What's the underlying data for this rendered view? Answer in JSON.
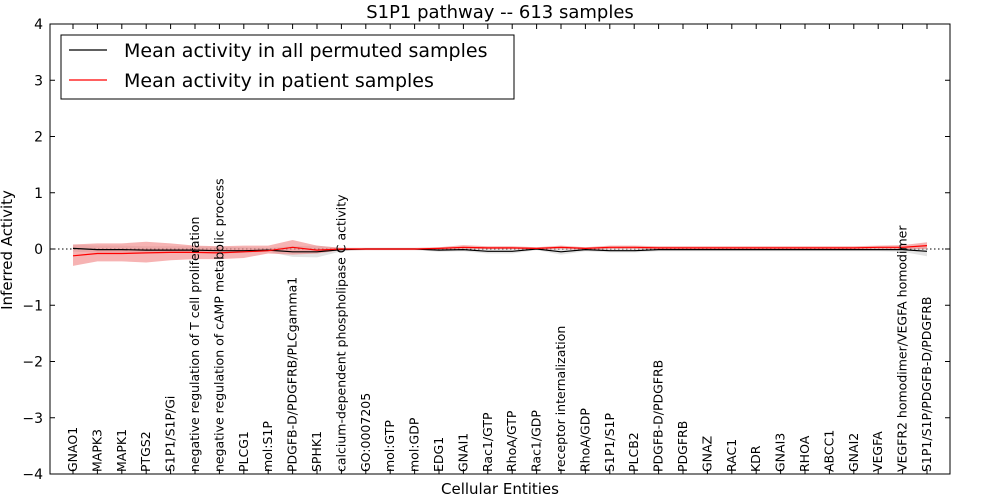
{
  "chart_data": {
    "type": "line",
    "title": "S1P1 pathway -- 613 samples",
    "xlabel": "Cellular Entities",
    "ylabel": "Inferred Activity",
    "ylim": [
      -4,
      4
    ],
    "yticks": [
      -4,
      -3,
      -2,
      -1,
      0,
      1,
      2,
      3,
      4
    ],
    "ytick_labels": [
      "−4",
      "−3",
      "−2",
      "−1",
      "0",
      "1",
      "2",
      "3",
      "4"
    ],
    "legend_position": "upper-left",
    "categories": [
      "GNAO1",
      "MAPK3",
      "MAPK1",
      "PTGS2",
      "S1P1/S1P/Gi",
      "negative regulation of T cell proliferation",
      "negative regulation of cAMP metabolic process",
      "PLCG1",
      "mol:S1P",
      "PDGFB-D/PDGFRB/PLCgamma1",
      "SPHK1",
      "calcium-dependent phospholipase C activity",
      "GO:0007205",
      "mol:GTP",
      "mol:GDP",
      "EDG1",
      "GNAI1",
      "Rac1/GTP",
      "RhoA/GTP",
      "Rac1/GDP",
      "receptor internalization",
      "RhoA/GDP",
      "S1P1/S1P",
      "PLCB2",
      "PDGFB-D/PDGFRB",
      "PDGFRB",
      "GNAZ",
      "RAC1",
      "KDR",
      "GNAI3",
      "RHOA",
      "ABCC1",
      "GNAI2",
      "VEGFA",
      "VEGFR2 homodimer/VEGFA homodimer",
      "S1P1/S1P/PDGFB-D/PDGFRB"
    ],
    "series": [
      {
        "name": "Mean activity in all permuted samples",
        "color": "#000000",
        "values": [
          0.01,
          -0.01,
          -0.01,
          -0.02,
          -0.02,
          -0.02,
          -0.03,
          -0.03,
          -0.02,
          -0.05,
          -0.05,
          -0.01,
          0.0,
          0.0,
          0.0,
          -0.02,
          -0.01,
          -0.04,
          -0.04,
          0.0,
          -0.05,
          -0.01,
          -0.03,
          -0.03,
          -0.01,
          -0.01,
          -0.01,
          -0.01,
          -0.01,
          -0.01,
          -0.01,
          -0.01,
          -0.01,
          -0.01,
          -0.01,
          -0.04
        ],
        "band_low": [
          -0.05,
          -0.06,
          -0.06,
          -0.07,
          -0.07,
          -0.07,
          -0.08,
          -0.07,
          -0.05,
          -0.14,
          -0.15,
          -0.04,
          -0.02,
          -0.02,
          -0.02,
          -0.05,
          -0.04,
          -0.08,
          -0.08,
          -0.02,
          -0.1,
          -0.04,
          -0.06,
          -0.06,
          -0.04,
          -0.04,
          -0.04,
          -0.04,
          -0.04,
          -0.04,
          -0.04,
          -0.04,
          -0.04,
          -0.04,
          -0.05,
          -0.13
        ],
        "band_high": [
          0.08,
          0.06,
          0.06,
          0.05,
          0.05,
          0.05,
          0.04,
          0.03,
          0.02,
          0.05,
          0.06,
          0.02,
          0.02,
          0.02,
          0.02,
          0.02,
          0.02,
          0.02,
          0.02,
          0.02,
          0.02,
          0.02,
          0.02,
          0.03,
          0.03,
          0.03,
          0.03,
          0.03,
          0.03,
          0.03,
          0.03,
          0.03,
          0.03,
          0.03,
          0.04,
          0.06
        ]
      },
      {
        "name": "Mean activity in patient samples",
        "color": "#ff0000",
        "values": [
          -0.12,
          -0.08,
          -0.08,
          -0.07,
          -0.06,
          -0.06,
          -0.07,
          -0.05,
          -0.03,
          0.03,
          -0.02,
          0.0,
          0.0,
          0.0,
          0.0,
          0.01,
          0.03,
          0.02,
          0.02,
          0.01,
          0.03,
          0.01,
          0.03,
          0.03,
          0.02,
          0.02,
          0.02,
          0.02,
          0.02,
          0.02,
          0.02,
          0.02,
          0.02,
          0.03,
          0.03,
          0.06
        ],
        "band_low": [
          -0.3,
          -0.22,
          -0.22,
          -0.24,
          -0.2,
          -0.18,
          -0.18,
          -0.16,
          -0.08,
          -0.1,
          -0.08,
          -0.02,
          -0.02,
          -0.02,
          -0.02,
          -0.01,
          0.0,
          0.0,
          0.0,
          -0.01,
          0.0,
          -0.01,
          0.0,
          0.0,
          0.0,
          0.0,
          0.0,
          0.0,
          0.0,
          0.0,
          0.0,
          0.0,
          0.0,
          0.0,
          0.0,
          0.0
        ],
        "band_high": [
          0.08,
          0.1,
          0.1,
          0.13,
          0.1,
          0.06,
          0.05,
          0.06,
          0.06,
          0.16,
          0.06,
          0.02,
          0.02,
          0.02,
          0.02,
          0.03,
          0.07,
          0.05,
          0.05,
          0.03,
          0.06,
          0.03,
          0.06,
          0.06,
          0.05,
          0.05,
          0.05,
          0.05,
          0.05,
          0.05,
          0.05,
          0.05,
          0.05,
          0.06,
          0.07,
          0.12
        ]
      }
    ],
    "baseline": {
      "value": 0,
      "style": "dotted",
      "color": "#000000"
    }
  }
}
